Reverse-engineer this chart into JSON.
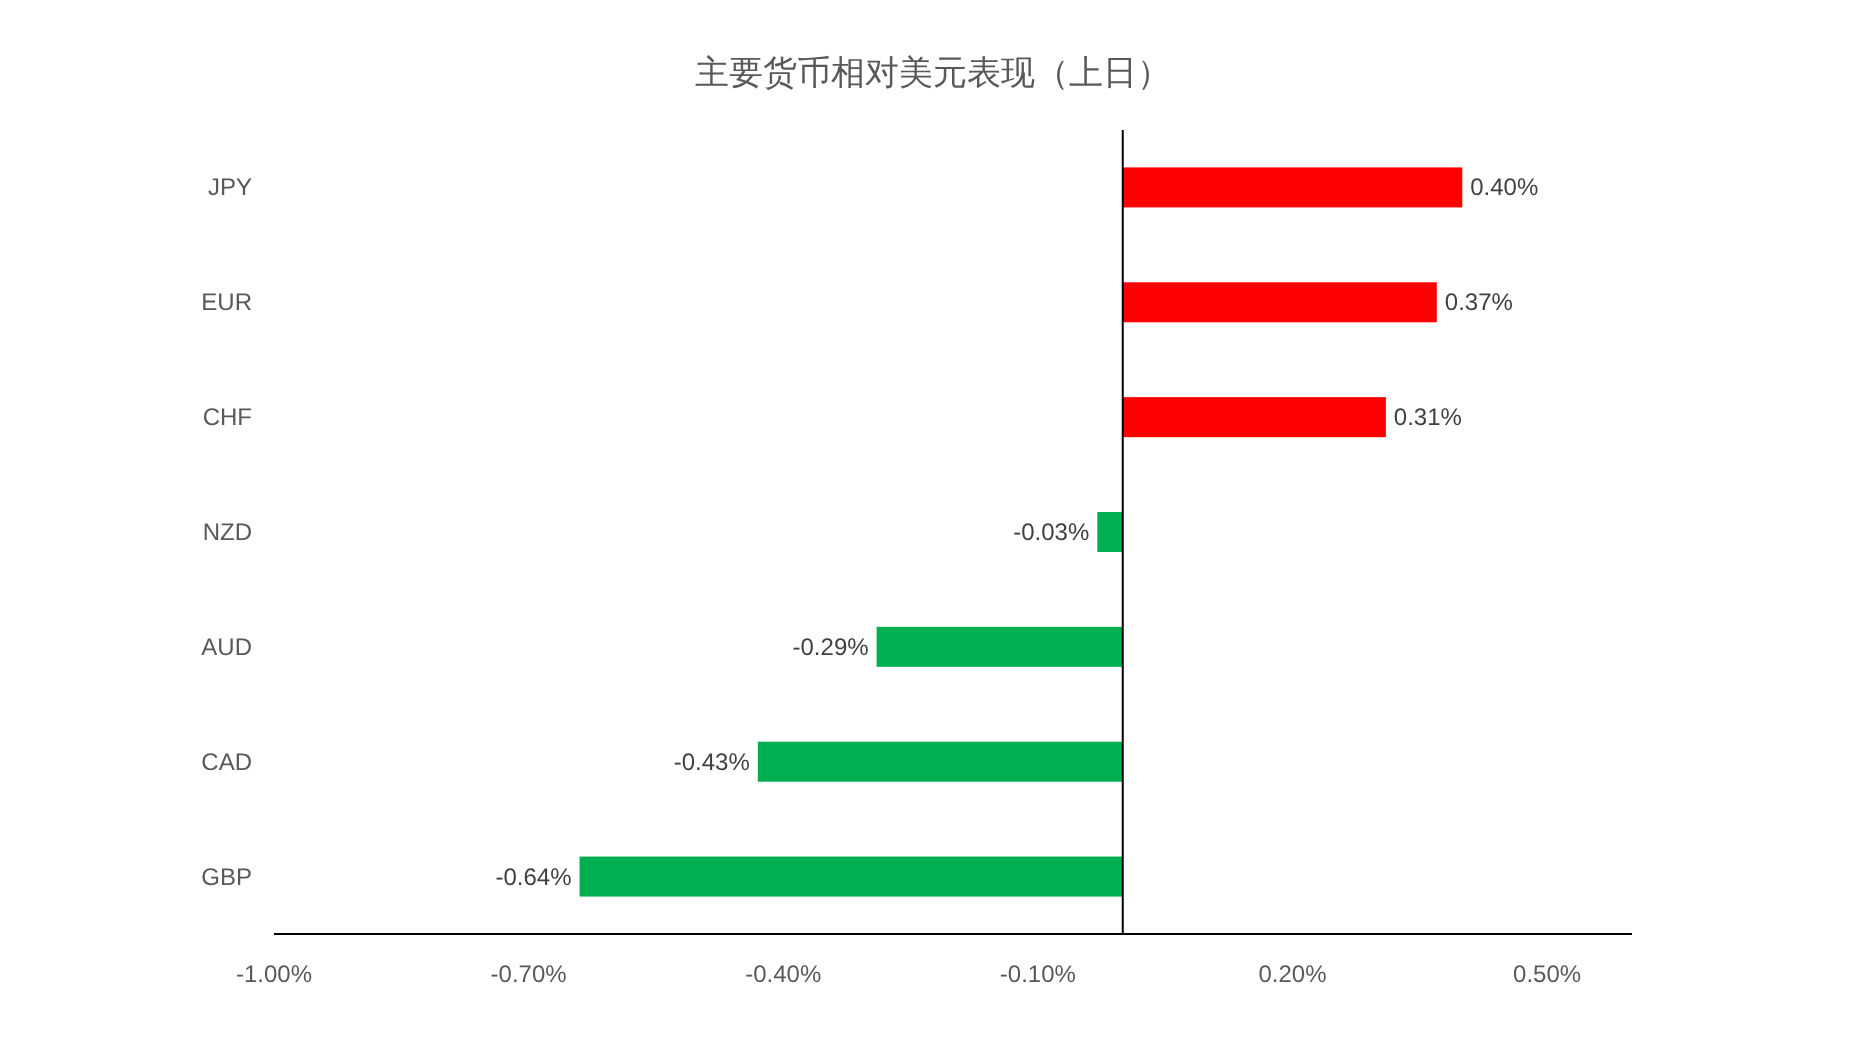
{
  "chart_data": {
    "type": "bar",
    "orientation": "horizontal",
    "title": "主要货币相对美元表现（上日）",
    "categories": [
      "JPY",
      "EUR",
      "CHF",
      "NZD",
      "AUD",
      "CAD",
      "GBP"
    ],
    "values": [
      0.4,
      0.37,
      0.31,
      -0.03,
      -0.29,
      -0.43,
      -0.64
    ],
    "colors": [
      "#ff0000",
      "#ff0000",
      "#ff0000",
      "#00b050",
      "#00b050",
      "#00b050",
      "#00b050"
    ],
    "value_labels": [
      "0.40%",
      "0.37%",
      "0.31%",
      "-0.03%",
      "-0.29%",
      "-0.43%",
      "-0.64%"
    ],
    "xlim": [
      -1.0,
      0.6
    ],
    "xticks": [
      {
        "value": -1.0,
        "label": "-1.00%"
      },
      {
        "value": -0.7,
        "label": "-0.70%"
      },
      {
        "value": -0.4,
        "label": "-0.40%"
      },
      {
        "value": -0.1,
        "label": "-0.10%"
      },
      {
        "value": 0.2,
        "label": "0.20%"
      },
      {
        "value": 0.5,
        "label": "0.50%"
      }
    ]
  }
}
